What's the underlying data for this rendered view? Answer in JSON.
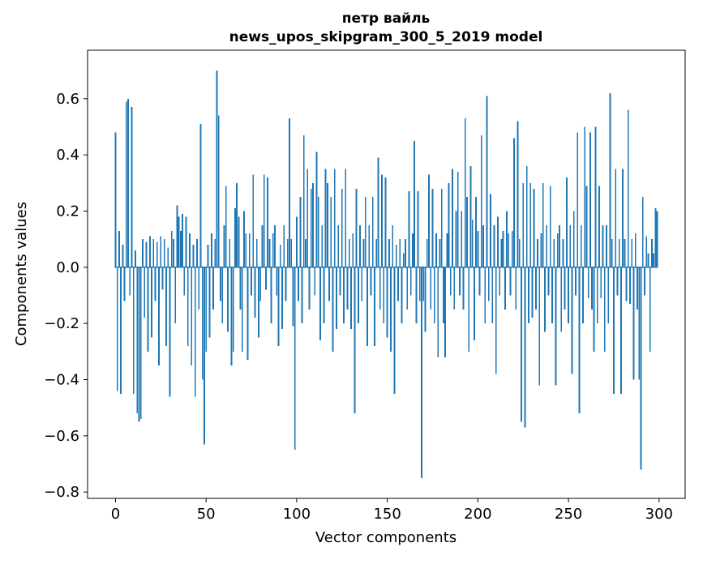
{
  "chart_data": {
    "type": "bar",
    "title": "петр вайль",
    "subtitle": "news_upos_skipgram_300_5_2019 model",
    "xlabel": "Vector components",
    "ylabel": "Components values",
    "bar_color": "#1f77b4",
    "n_components": 300,
    "xlim": [
      -15.4,
      314.4
    ],
    "ylim": [
      -0.8225,
      0.7725
    ],
    "x_ticks": [
      0,
      50,
      100,
      150,
      200,
      250,
      300
    ],
    "y_ticks": [
      -0.8,
      -0.6,
      -0.4,
      -0.2,
      0.0,
      0.2,
      0.4,
      0.6
    ],
    "grid": false,
    "legend": null,
    "values": [
      0.48,
      -0.44,
      0.13,
      -0.45,
      0.08,
      -0.12,
      0.59,
      0.6,
      -0.1,
      0.57,
      -0.45,
      0.06,
      -0.52,
      -0.55,
      -0.54,
      0.1,
      -0.18,
      0.09,
      -0.3,
      0.11,
      -0.25,
      0.1,
      -0.12,
      0.09,
      -0.35,
      0.11,
      -0.08,
      0.1,
      -0.28,
      0.07,
      -0.46,
      0.13,
      0.1,
      -0.2,
      0.22,
      0.18,
      0.13,
      0.19,
      -0.1,
      0.18,
      -0.28,
      0.12,
      -0.35,
      0.08,
      -0.46,
      0.1,
      -0.15,
      0.51,
      -0.4,
      -0.63,
      -0.3,
      0.08,
      -0.25,
      0.12,
      -0.15,
      0.1,
      0.7,
      0.54,
      -0.12,
      -0.2,
      0.15,
      0.29,
      -0.23,
      0.1,
      -0.35,
      -0.3,
      0.21,
      0.3,
      0.18,
      -0.15,
      -0.3,
      0.2,
      0.12,
      -0.33,
      0.12,
      -0.1,
      0.33,
      -0.18,
      0.1,
      -0.25,
      -0.12,
      0.15,
      0.33,
      -0.08,
      0.32,
      0.1,
      -0.2,
      0.12,
      0.15,
      -0.1,
      -0.28,
      0.08,
      -0.22,
      0.15,
      -0.12,
      0.1,
      0.53,
      0.1,
      -0.21,
      -0.65,
      0.18,
      -0.12,
      0.25,
      -0.2,
      0.47,
      0.1,
      0.35,
      -0.15,
      0.28,
      0.3,
      -0.1,
      0.41,
      0.25,
      -0.26,
      0.15,
      -0.2,
      0.35,
      0.3,
      -0.12,
      0.25,
      -0.3,
      0.35,
      -0.22,
      0.15,
      -0.1,
      0.28,
      -0.2,
      0.35,
      -0.15,
      0.1,
      -0.22,
      0.12,
      -0.52,
      0.28,
      -0.2,
      0.15,
      -0.12,
      0.1,
      0.25,
      -0.28,
      0.15,
      -0.1,
      0.25,
      -0.28,
      0.1,
      0.39,
      -0.15,
      0.33,
      -0.2,
      0.32,
      -0.25,
      0.1,
      -0.3,
      0.15,
      -0.45,
      0.08,
      -0.12,
      0.1,
      -0.2,
      0.05,
      0.1,
      -0.15,
      0.27,
      -0.1,
      0.12,
      0.45,
      -0.2,
      0.27,
      -0.12,
      -0.75,
      -0.12,
      -0.23,
      0.1,
      0.33,
      -0.15,
      0.28,
      -0.2,
      0.12,
      -0.32,
      0.1,
      0.28,
      -0.2,
      -0.32,
      0.12,
      0.3,
      -0.1,
      0.35,
      -0.15,
      0.2,
      0.34,
      -0.1,
      0.2,
      -0.15,
      0.53,
      0.25,
      -0.3,
      0.36,
      0.17,
      -0.26,
      0.25,
      0.13,
      -0.1,
      0.47,
      0.15,
      -0.2,
      0.61,
      -0.12,
      0.26,
      -0.2,
      0.15,
      -0.38,
      0.18,
      -0.1,
      0.1,
      0.13,
      -0.15,
      0.2,
      0.12,
      -0.1,
      0.13,
      0.46,
      -0.15,
      0.52,
      0.1,
      -0.55,
      0.3,
      -0.57,
      0.36,
      -0.2,
      0.3,
      -0.18,
      0.28,
      -0.15,
      0.1,
      -0.42,
      0.12,
      0.3,
      -0.23,
      0.15,
      -0.1,
      0.29,
      -0.2,
      0.1,
      -0.42,
      0.12,
      0.15,
      -0.23,
      0.1,
      -0.15,
      0.32,
      -0.2,
      0.15,
      -0.38,
      0.2,
      -0.1,
      0.48,
      -0.52,
      0.15,
      -0.2,
      0.5,
      0.29,
      -0.11,
      0.48,
      -0.15,
      -0.3,
      0.5,
      -0.2,
      0.29,
      -0.11,
      0.15,
      -0.3,
      0.15,
      -0.2,
      0.62,
      0.1,
      -0.45,
      0.35,
      -0.1,
      0.1,
      -0.45,
      0.35,
      0.1,
      -0.12,
      0.56,
      -0.13,
      0.1,
      -0.4,
      0.12,
      -0.15,
      -0.4,
      -0.72,
      0.25,
      -0.1,
      0.11,
      0.05,
      -0.3,
      0.1,
      0.05,
      0.21,
      0.2
    ]
  }
}
